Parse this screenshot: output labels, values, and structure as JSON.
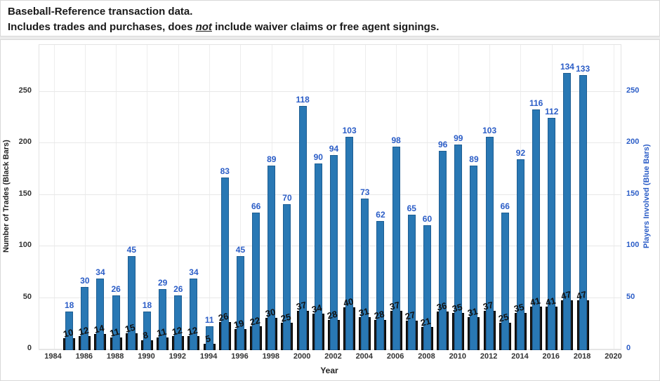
{
  "header": {
    "title_line1": "Baseball-Reference transaction data.",
    "title_line2_prefix": "Includes trades and purchases, does ",
    "title_line2_emphasis": "not",
    "title_line2_suffix": " include waiver claims or free agent signings."
  },
  "chart_data": {
    "type": "bar",
    "title": "Baseball-Reference transaction data",
    "xlabel": "Year",
    "ylabel_left": "Number of Trades (Black Bars)",
    "ylabel_right": "Players Involved (Blue Bars)",
    "x_ticks": [
      1984,
      1986,
      1988,
      1990,
      1992,
      1994,
      1996,
      1998,
      2000,
      2002,
      2004,
      2006,
      2008,
      2010,
      2012,
      2014,
      2016,
      2018,
      2020
    ],
    "x_range": [
      1984,
      2020
    ],
    "y_ticks_left": [
      0,
      50,
      100,
      150,
      200,
      250
    ],
    "y_ticks_right": [
      0,
      50,
      100,
      150,
      200,
      250
    ],
    "grid": true,
    "legend": "none",
    "years": [
      1985,
      1986,
      1987,
      1988,
      1989,
      1990,
      1991,
      1992,
      1993,
      1994,
      1995,
      1996,
      1997,
      1998,
      1999,
      2000,
      2001,
      2002,
      2003,
      2004,
      2005,
      2006,
      2007,
      2008,
      2009,
      2010,
      2011,
      2012,
      2013,
      2014,
      2015,
      2016,
      2017,
      2018
    ],
    "series": [
      {
        "name": "Number of Trades",
        "axis": "left",
        "color": "#191919",
        "values": [
          10,
          12,
          14,
          11,
          15,
          8,
          11,
          12,
          12,
          5,
          26,
          19,
          22,
          30,
          25,
          37,
          34,
          28,
          40,
          31,
          28,
          37,
          27,
          21,
          36,
          35,
          31,
          37,
          25,
          35,
          41,
          41,
          47,
          47
        ]
      },
      {
        "name": "Players Involved",
        "axis": "right",
        "color": "#2978b4",
        "values": [
          18,
          30,
          34,
          26,
          45,
          18,
          29,
          26,
          34,
          11,
          83,
          45,
          66,
          89,
          70,
          118,
          90,
          94,
          103,
          73,
          62,
          98,
          65,
          60,
          96,
          99,
          89,
          103,
          66,
          92,
          116,
          112,
          134,
          133
        ]
      }
    ],
    "colors": {
      "bar_black": "#191919",
      "bar_blue": "#2978b4",
      "bar_blue_edge": "#1d5d92",
      "label_blue": "#2b5dc7",
      "label_black": "#111111",
      "gridline": "#e8e8e8"
    }
  }
}
